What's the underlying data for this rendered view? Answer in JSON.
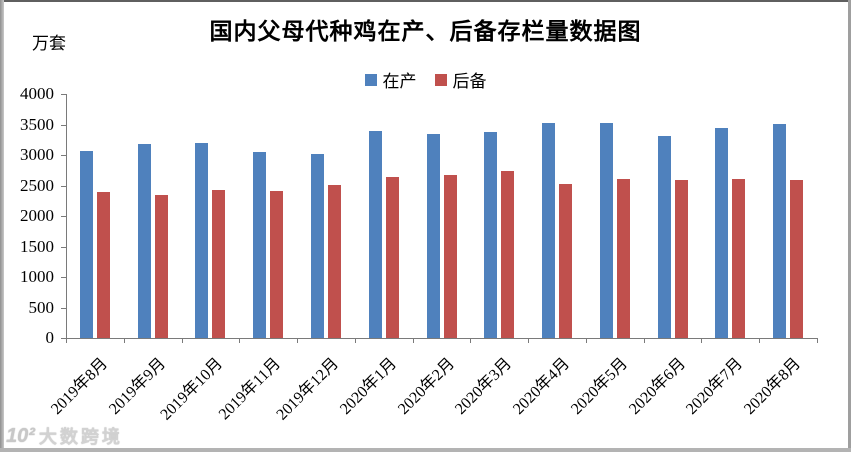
{
  "title": "国内父母代种鸡在产、后备存栏量数据图",
  "unit_label": "万套",
  "watermark": {
    "logo": "10²",
    "text": "大数跨境"
  },
  "chart_data": {
    "type": "bar",
    "title": "国内父母代种鸡在产、后备存栏量数据图",
    "unit": "万套",
    "categories": [
      "2019年8月",
      "2019年9月",
      "2019年10月",
      "2019年11月",
      "2019年12月",
      "2020年1月",
      "2020年2月",
      "2020年3月",
      "2020年4月",
      "2020年5月",
      "2020年6月",
      "2020年7月",
      "2020年8月"
    ],
    "series": [
      {
        "key": "zaichan",
        "name": "在产",
        "color": "#4F81BD",
        "values": [
          3060,
          3180,
          3190,
          3050,
          3010,
          3390,
          3350,
          3370,
          3520,
          3520,
          3310,
          3440,
          3510
        ]
      },
      {
        "key": "houbei",
        "name": "后备",
        "color": "#C0504D",
        "values": [
          2390,
          2350,
          2430,
          2410,
          2510,
          2640,
          2670,
          2740,
          2520,
          2610,
          2590,
          2600,
          2590
        ]
      }
    ],
    "ylim": [
      0,
      4000
    ],
    "ytick_step": 500,
    "yticks": [
      "4000",
      "3500",
      "3000",
      "2500",
      "2000",
      "1500",
      "1000",
      "500",
      "0"
    ],
    "xlabel_rotation_deg": -45,
    "grid": false,
    "legend_position": "top-center"
  }
}
